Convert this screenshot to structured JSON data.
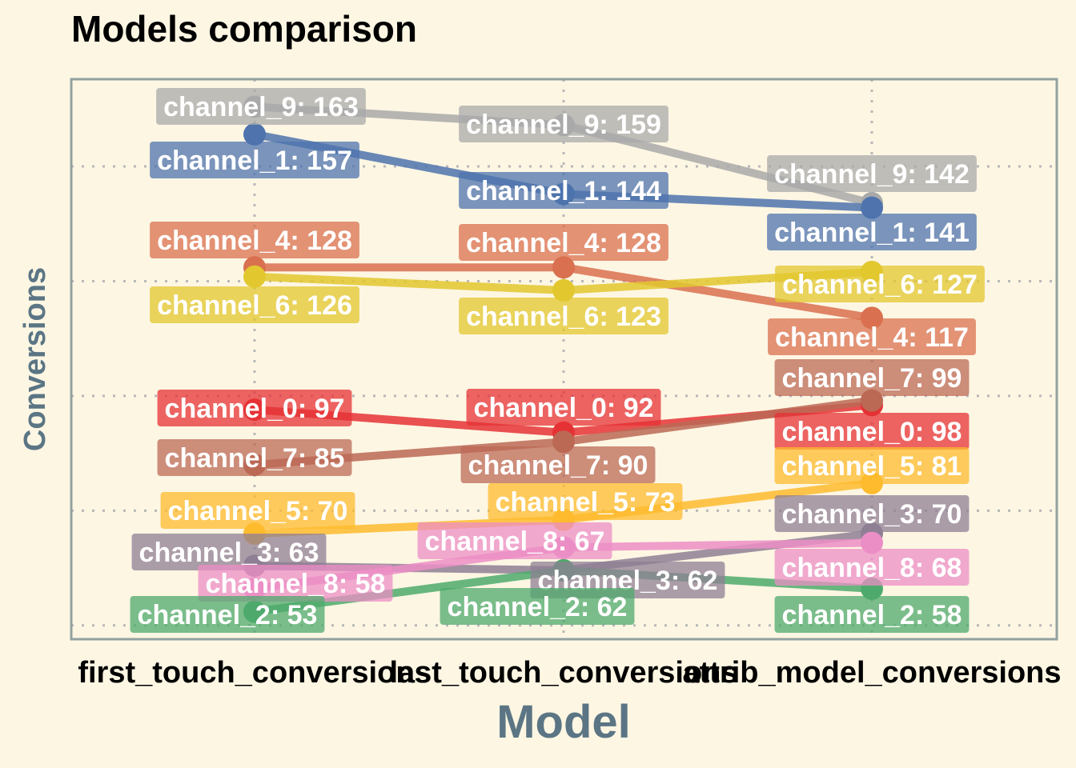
{
  "chart_data": {
    "type": "line",
    "title": "Models comparison",
    "xlabel": "Model",
    "ylabel": "Conversions",
    "categories": [
      "first_touch_conversions",
      "last_touch_conversions",
      "attrib_model_conversions"
    ],
    "ylim": [
      47,
      169
    ],
    "grid": true,
    "series": [
      {
        "name": "channel_9",
        "color": "#a9a9a9",
        "values": [
          163,
          159,
          142
        ]
      },
      {
        "name": "channel_1",
        "color": "#4e73ad",
        "values": [
          157,
          144,
          141
        ]
      },
      {
        "name": "channel_4",
        "color": "#d9704f",
        "values": [
          128,
          128,
          117
        ]
      },
      {
        "name": "channel_6",
        "color": "#e2c72e",
        "values": [
          126,
          123,
          127
        ]
      },
      {
        "name": "channel_0",
        "color": "#e53235",
        "values": [
          97,
          92,
          98
        ]
      },
      {
        "name": "channel_7",
        "color": "#bb6955",
        "values": [
          85,
          90,
          99
        ]
      },
      {
        "name": "channel_5",
        "color": "#fdbb2e",
        "values": [
          70,
          73,
          81
        ]
      },
      {
        "name": "channel_3",
        "color": "#8f7f94",
        "values": [
          63,
          62,
          70
        ]
      },
      {
        "name": "channel_8",
        "color": "#ec8ec6",
        "values": [
          58,
          67,
          68
        ]
      },
      {
        "name": "channel_2",
        "color": "#4eaa6c",
        "values": [
          53,
          62,
          58
        ]
      }
    ]
  },
  "labels": {
    "channel_9": [
      "channel_9: 163",
      "channel_9: 159",
      "channel_9: 142"
    ],
    "channel_1": [
      "channel_1: 157",
      "channel_1: 144",
      "channel_1: 141"
    ],
    "channel_4": [
      "channel_4: 128",
      "channel_4: 128",
      "channel_4: 117"
    ],
    "channel_6": [
      "channel_6: 126",
      "channel_6: 123",
      "channel_6: 127"
    ],
    "channel_0": [
      "channel_0: 97",
      "channel_0: 92",
      "channel_0: 98"
    ],
    "channel_7": [
      "channel_7: 85",
      "channel_7: 90",
      "channel_7: 99"
    ],
    "channel_5": [
      "channel_5: 70",
      "channel_5: 73",
      "channel_5: 81"
    ],
    "channel_3": [
      "channel_3: 63",
      "channel_3: 62",
      "channel_3: 70"
    ],
    "channel_8": [
      "channel_8: 58",
      "channel_8: 67",
      "channel_8: 68"
    ],
    "channel_2": [
      "channel_2: 53",
      "channel_2: 62",
      "channel_2: 58"
    ]
  },
  "colors": {
    "background": "#fdf6e3",
    "axis_text": "#5b7584",
    "panel_border": "#93a1a1",
    "grid": "#b8b8b8"
  }
}
